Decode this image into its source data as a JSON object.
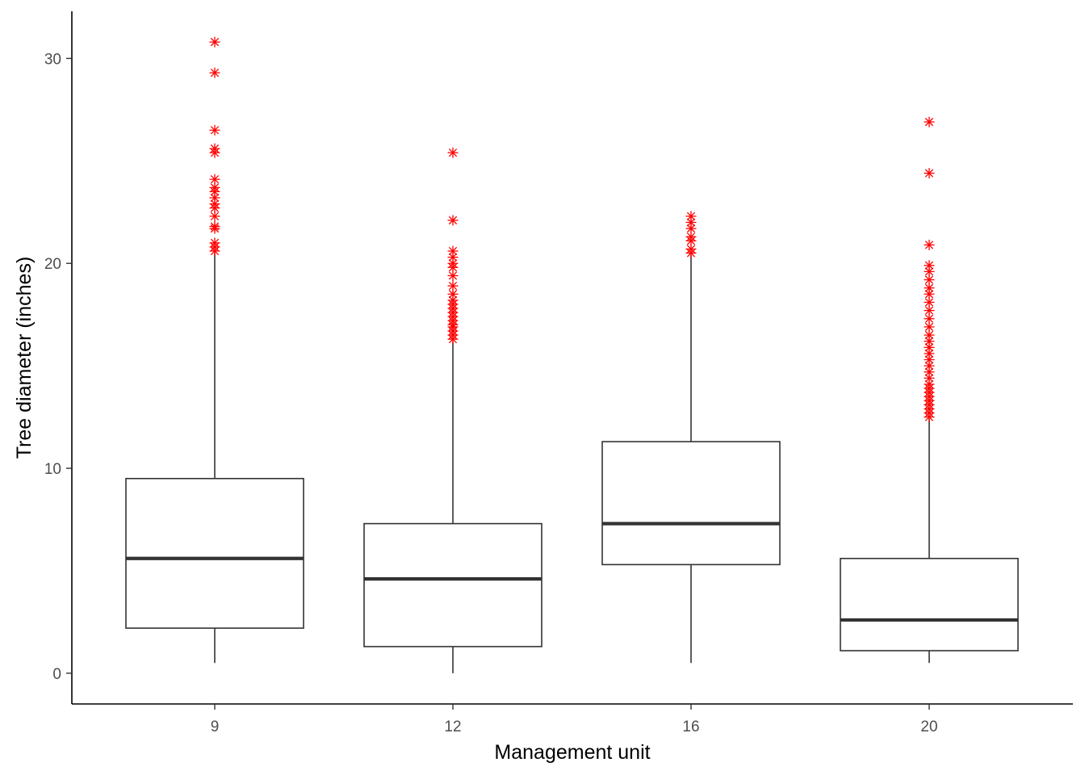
{
  "chart_data": {
    "type": "box",
    "xlabel": "Management unit",
    "ylabel": "Tree diameter (inches)",
    "ylim": [
      -1.5,
      32.3
    ],
    "y_ticks": [
      0,
      10,
      20,
      30
    ],
    "grid": false,
    "outlier_color": "#ff0000",
    "box_color": "#333333",
    "categories": [
      "9",
      "12",
      "16",
      "20"
    ],
    "boxes": [
      {
        "category": "9",
        "min": 0.5,
        "q1": 2.2,
        "median": 5.6,
        "q3": 9.5,
        "max": 20.5,
        "outliers": [
          20.6,
          20.8,
          21.0,
          21.7,
          21.8,
          22.3,
          22.7,
          22.9,
          23.2,
          23.5,
          23.7,
          24.1,
          25.4,
          25.6,
          26.5,
          29.3,
          30.8
        ]
      },
      {
        "category": "12",
        "min": 0.0,
        "q1": 1.3,
        "median": 4.6,
        "q3": 7.3,
        "max": 16.2,
        "outliers": [
          16.3,
          16.5,
          16.7,
          16.9,
          17.0,
          17.2,
          17.4,
          17.6,
          17.8,
          18.0,
          18.2,
          18.5,
          18.9,
          19.4,
          19.8,
          20.0,
          20.3,
          20.6,
          22.1,
          25.4
        ]
      },
      {
        "category": "16",
        "min": 0.5,
        "q1": 5.3,
        "median": 7.3,
        "q3": 11.3,
        "max": 20.4,
        "outliers": [
          20.5,
          20.7,
          21.1,
          21.3,
          21.7,
          22.0,
          22.3
        ]
      },
      {
        "category": "20",
        "min": 0.5,
        "q1": 1.1,
        "median": 2.6,
        "q3": 5.6,
        "max": 12.4,
        "outliers": [
          12.5,
          12.7,
          12.9,
          13.1,
          13.3,
          13.5,
          13.7,
          13.9,
          14.1,
          14.4,
          14.7,
          15.0,
          15.3,
          15.6,
          15.9,
          16.2,
          16.5,
          16.9,
          17.3,
          17.7,
          18.1,
          18.5,
          18.8,
          19.2,
          19.6,
          19.9,
          20.9,
          24.4,
          26.9
        ]
      }
    ]
  }
}
